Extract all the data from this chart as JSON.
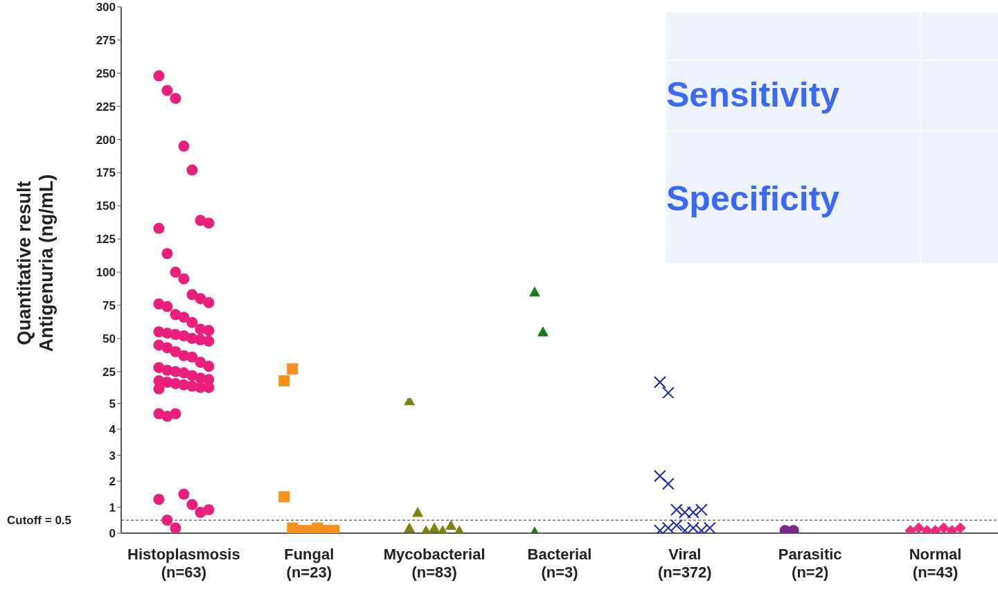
{
  "chart_data": [
    {
      "type": "scatter",
      "ylabel": "Quantitative result\nAntigenuria (ng/mL)",
      "categories": [
        "Histoplasmosis\n(n=63)",
        "Fungal\n(n=23)",
        "Mycobacterial\n(n=83)",
        "Bacterial\n(n=3)",
        "Viral\n(n=372)",
        "Parasitic\n(n=2)",
        "Normal\n(n=43)"
      ],
      "ylim": [
        5,
        300
      ],
      "yticks": [
        25,
        50,
        75,
        100,
        125,
        150,
        175,
        200,
        225,
        250,
        275,
        300
      ],
      "tick_labels": "y",
      "series": [
        {
          "color": "#ea1f7c",
          "marker": "circle",
          "x": [
            "Histoplasmosis\n(n=63)",
            "Histoplasmosis\n(n=63)",
            "Histoplasmosis\n(n=63)",
            "Histoplasmosis\n(n=63)",
            "Histoplasmosis\n(n=63)",
            "Histoplasmosis\n(n=63)",
            "Histoplasmosis\n(n=63)",
            "Histoplasmosis\n(n=63)",
            "Histoplasmosis\n(n=63)",
            "Histoplasmosis\n(n=63)",
            "Histoplasmosis\n(n=63)",
            "Histoplasmosis\n(n=63)",
            "Histoplasmosis\n(n=63)",
            "Histoplasmosis\n(n=63)",
            "Histoplasmosis\n(n=63)",
            "Histoplasmosis\n(n=63)",
            "Histoplasmosis\n(n=63)",
            "Histoplasmosis\n(n=63)",
            "Histoplasmosis\n(n=63)",
            "Histoplasmosis\n(n=63)",
            "Histoplasmosis\n(n=63)",
            "Histoplasmosis\n(n=63)",
            "Histoplasmosis\n(n=63)",
            "Histoplasmosis\n(n=63)",
            "Histoplasmosis\n(n=63)",
            "Histoplasmosis\n(n=63)",
            "Histoplasmosis\n(n=63)",
            "Histoplasmosis\n(n=63)",
            "Histoplasmosis\n(n=63)",
            "Histoplasmosis\n(n=63)",
            "Histoplasmosis\n(n=63)",
            "Histoplasmosis\n(n=63)",
            "Histoplasmosis\n(n=63)",
            "Histoplasmosis\n(n=63)",
            "Histoplasmosis\n(n=63)",
            "Histoplasmosis\n(n=63)",
            "Histoplasmosis\n(n=63)",
            "Histoplasmosis\n(n=63)",
            "Histoplasmosis\n(n=63)",
            "Histoplasmosis\n(n=63)",
            "Histoplasmosis\n(n=63)",
            "Histoplasmosis\n(n=63)",
            "Histoplasmosis\n(n=63)",
            "Histoplasmosis\n(n=63)",
            "Histoplasmosis\n(n=63)",
            "Histoplasmosis\n(n=63)",
            "Histoplasmosis\n(n=63)",
            "Histoplasmosis\n(n=63)",
            "Histoplasmosis\n(n=63)",
            "Histoplasmosis\n(n=63)"
          ],
          "values": [
            248,
            237,
            231,
            195,
            177,
            139,
            137,
            133,
            114,
            100,
            95,
            83,
            80,
            77,
            76,
            74,
            68,
            66,
            62,
            57,
            56,
            55,
            54,
            53,
            52,
            50,
            49,
            48,
            45,
            43,
            40,
            37,
            36,
            32,
            29,
            28,
            26,
            25,
            24,
            22,
            20,
            19,
            18,
            17,
            16,
            15,
            14,
            13,
            13,
            12
          ]
        },
        {
          "color": "#f7901e",
          "marker": "square",
          "x": [
            "Fungal\n(n=23)",
            "Fungal\n(n=23)"
          ],
          "values": [
            18,
            27
          ]
        },
        {
          "color": "#1b7a1b",
          "marker": "triangle",
          "x": [
            "Bacterial\n(n=3)",
            "Bacterial\n(n=3)"
          ],
          "values": [
            85,
            55
          ]
        },
        {
          "color": "#1c2a8c",
          "marker": "cross",
          "x": [
            "Viral\n(n=372)",
            "Viral\n(n=372)"
          ],
          "values": [
            17,
            9
          ]
        }
      ]
    },
    {
      "type": "scatter",
      "categories": [
        "Histoplasmosis\n(n=63)",
        "Fungal\n(n=23)",
        "Mycobacterial\n(n=83)",
        "Bacterial\n(n=3)",
        "Viral\n(n=372)",
        "Parasitic\n(n=2)",
        "Normal\n(n=43)"
      ],
      "ylim": [
        0,
        5.2
      ],
      "yticks": [
        0,
        1,
        2,
        3,
        4,
        5
      ],
      "ref_lines": [
        {
          "axis": "y",
          "value": 0.5,
          "label": "Cutoff = 0.5",
          "line_style": "dashed"
        }
      ],
      "series": [
        {
          "color": "#ea1f7c",
          "marker": "circle",
          "x": [
            "Histoplasmosis\n(n=63)",
            "Histoplasmosis\n(n=63)",
            "Histoplasmosis\n(n=63)",
            "Histoplasmosis\n(n=63)",
            "Histoplasmosis\n(n=63)",
            "Histoplasmosis\n(n=63)",
            "Histoplasmosis\n(n=63)",
            "Histoplasmosis\n(n=63)",
            "Histoplasmosis\n(n=63)",
            "Histoplasmosis\n(n=63)"
          ],
          "values": [
            4.6,
            4.5,
            4.6,
            1.5,
            1.1,
            0.8,
            0.9,
            1.3,
            0.5,
            0.2
          ]
        },
        {
          "color": "#f7901e",
          "marker": "square",
          "x": [
            "Fungal\n(n=23)",
            "Fungal\n(n=23)",
            "Fungal\n(n=23)",
            "Fungal\n(n=23)",
            "Fungal\n(n=23)",
            "Fungal\n(n=23)",
            "Fungal\n(n=23)"
          ],
          "values": [
            1.4,
            0.2,
            0.1,
            0.1,
            0.2,
            0.1,
            0.1
          ]
        },
        {
          "color": "#808010",
          "marker": "triangle",
          "x": [
            "Mycobacterial\n(n=83)",
            "Mycobacterial\n(n=83)",
            "Mycobacterial\n(n=83)",
            "Mycobacterial\n(n=83)",
            "Mycobacterial\n(n=83)",
            "Mycobacterial\n(n=83)",
            "Mycobacterial\n(n=83)",
            "Mycobacterial\n(n=83)"
          ],
          "values": [
            5.1,
            0.8,
            0.1,
            0.2,
            0.1,
            0.3,
            0.1,
            0.2
          ]
        },
        {
          "color": "#1b7a1b",
          "marker": "triangle",
          "x": [
            "Bacterial\n(n=3)"
          ],
          "values": [
            0.05
          ]
        },
        {
          "color": "#1c2ab0",
          "marker": "cross",
          "x": [
            "Viral\n(n=372)",
            "Viral\n(n=372)",
            "Viral\n(n=372)",
            "Viral\n(n=372)",
            "Viral\n(n=372)",
            "Viral\n(n=372)",
            "Viral\n(n=372)",
            "Viral\n(n=372)",
            "Viral\n(n=372)",
            "Viral\n(n=372)",
            "Viral\n(n=372)",
            "Viral\n(n=372)",
            "Viral\n(n=372)"
          ],
          "values": [
            2.2,
            1.9,
            0.9,
            0.8,
            0.8,
            0.9,
            0.2,
            0.1,
            0.2,
            0.3,
            0.1,
            0.2,
            0.1
          ]
        },
        {
          "color": "#7b2a8b",
          "marker": "circle",
          "x": [
            "Parasitic\n(n=2)",
            "Parasitic\n(n=2)"
          ],
          "values": [
            0.1,
            0.1
          ]
        },
        {
          "color": "#f0287a",
          "marker": "diamond",
          "x": [
            "Normal\n(n=43)",
            "Normal\n(n=43)",
            "Normal\n(n=43)",
            "Normal\n(n=43)",
            "Normal\n(n=43)",
            "Normal\n(n=43)",
            "Normal\n(n=43)"
          ],
          "values": [
            0.1,
            0.2,
            0.1,
            0.1,
            0.2,
            0.1,
            0.2
          ]
        }
      ]
    },
    {
      "type": "other",
      "annotations": [
        "Sensitivity",
        "Specificity"
      ]
    }
  ]
}
